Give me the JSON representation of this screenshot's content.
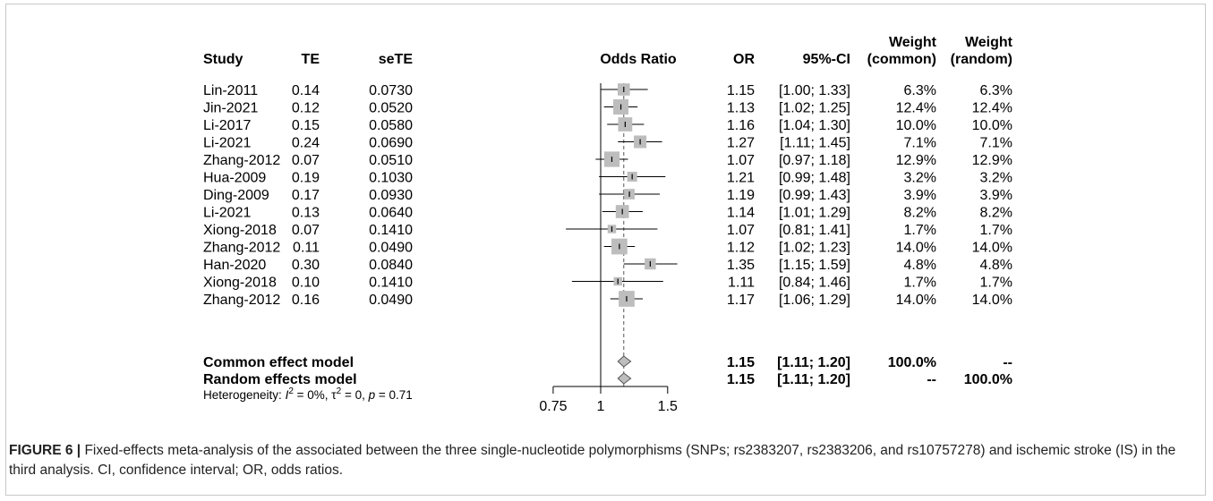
{
  "chart_data": {
    "type": "forest",
    "headers": {
      "study": "Study",
      "te": "TE",
      "sete": "seTE",
      "plot": "Odds Ratio",
      "or": "OR",
      "ci": "95%-CI",
      "weight_top": "Weight",
      "weight_common": "(common)",
      "weight_random": "(random)"
    },
    "studies": [
      {
        "name": "Lin-2011",
        "te": "0.14",
        "sete": "0.0730",
        "or": 1.15,
        "lo": 1.0,
        "hi": 1.33,
        "ci": "[1.00; 1.33]",
        "w_common": "6.3%",
        "w_random": "6.3%",
        "w": 6.3
      },
      {
        "name": "Jin-2021",
        "te": "0.12",
        "sete": "0.0520",
        "or": 1.13,
        "lo": 1.02,
        "hi": 1.25,
        "ci": "[1.02; 1.25]",
        "w_common": "12.4%",
        "w_random": "12.4%",
        "w": 12.4
      },
      {
        "name": "Li-2017",
        "te": "0.15",
        "sete": "0.0580",
        "or": 1.16,
        "lo": 1.04,
        "hi": 1.3,
        "ci": "[1.04; 1.30]",
        "w_common": "10.0%",
        "w_random": "10.0%",
        "w": 10.0
      },
      {
        "name": "Li-2021",
        "te": "0.24",
        "sete": "0.0690",
        "or": 1.27,
        "lo": 1.11,
        "hi": 1.45,
        "ci": "[1.11; 1.45]",
        "w_common": "7.1%",
        "w_random": "7.1%",
        "w": 7.1
      },
      {
        "name": "Zhang-2012",
        "te": "0.07",
        "sete": "0.0510",
        "or": 1.07,
        "lo": 0.97,
        "hi": 1.18,
        "ci": "[0.97; 1.18]",
        "w_common": "12.9%",
        "w_random": "12.9%",
        "w": 12.9
      },
      {
        "name": "Hua-2009",
        "te": "0.19",
        "sete": "0.1030",
        "or": 1.21,
        "lo": 0.99,
        "hi": 1.48,
        "ci": "[0.99; 1.48]",
        "w_common": "3.2%",
        "w_random": "3.2%",
        "w": 3.2
      },
      {
        "name": "Ding-2009",
        "te": "0.17",
        "sete": "0.0930",
        "or": 1.19,
        "lo": 0.99,
        "hi": 1.43,
        "ci": "[0.99; 1.43]",
        "w_common": "3.9%",
        "w_random": "3.9%",
        "w": 3.9
      },
      {
        "name": "Li-2021",
        "te": "0.13",
        "sete": "0.0640",
        "or": 1.14,
        "lo": 1.01,
        "hi": 1.29,
        "ci": "[1.01; 1.29]",
        "w_common": "8.2%",
        "w_random": "8.2%",
        "w": 8.2
      },
      {
        "name": "Xiong-2018",
        "te": "0.07",
        "sete": "0.1410",
        "or": 1.07,
        "lo": 0.81,
        "hi": 1.41,
        "ci": "[0.81; 1.41]",
        "w_common": "1.7%",
        "w_random": "1.7%",
        "w": 1.7
      },
      {
        "name": "Zhang-2012",
        "te": "0.11",
        "sete": "0.0490",
        "or": 1.12,
        "lo": 1.02,
        "hi": 1.23,
        "ci": "[1.02; 1.23]",
        "w_common": "14.0%",
        "w_random": "14.0%",
        "w": 14.0
      },
      {
        "name": "Han-2020",
        "te": "0.30",
        "sete": "0.0840",
        "or": 1.35,
        "lo": 1.15,
        "hi": 1.59,
        "ci": "[1.15; 1.59]",
        "w_common": "4.8%",
        "w_random": "4.8%",
        "w": 4.8
      },
      {
        "name": "Xiong-2018",
        "te": "0.10",
        "sete": "0.1410",
        "or": 1.11,
        "lo": 0.84,
        "hi": 1.46,
        "ci": "[0.84; 1.46]",
        "w_common": "1.7%",
        "w_random": "1.7%",
        "w": 1.7
      },
      {
        "name": "Zhang-2012",
        "te": "0.16",
        "sete": "0.0490",
        "or": 1.17,
        "lo": 1.06,
        "hi": 1.29,
        "ci": "[1.06; 1.29]",
        "w_common": "14.0%",
        "w_random": "14.0%",
        "w": 14.0
      }
    ],
    "summaries": [
      {
        "name": "Common effect model",
        "or": 1.15,
        "lo": 1.11,
        "hi": 1.2,
        "or_text": "1.15",
        "ci": "[1.11; 1.20]",
        "w_common": "100.0%",
        "w_random": "--"
      },
      {
        "name": "Random effects model",
        "or": 1.15,
        "lo": 1.11,
        "hi": 1.2,
        "or_text": "1.15",
        "ci": "[1.11; 1.20]",
        "w_common": "--",
        "w_random": "100.0%"
      }
    ],
    "heterogeneity": {
      "prefix": "Heterogeneity: ",
      "i2_sym": "I",
      "i2_val": " = 0%, ",
      "tau_sym": "τ",
      "tau_val": " = 0, ",
      "p_sym": "p",
      "p_val": " = 0.71"
    },
    "x_axis": {
      "scale": "log",
      "ticks": [
        0.75,
        1,
        1.5
      ],
      "tick_labels": [
        "0.75",
        "1",
        "1.5"
      ],
      "range": [
        0.75,
        1.5
      ],
      "reference_line": 1
    },
    "colors": {
      "box": "#bdbdbd",
      "line": "#000000",
      "dashed": "#555555",
      "diamond_fill": "#bdbdbd"
    }
  },
  "caption": {
    "label": "FIGURE 6 |",
    "text": " Fixed-effects meta-analysis of the associated between the three single-nucleotide polymorphisms (SNPs; rs2383207, rs2383206, and rs10757278) and ischemic stroke (IS) in the third analysis. CI, confidence interval; OR, odds ratios."
  }
}
